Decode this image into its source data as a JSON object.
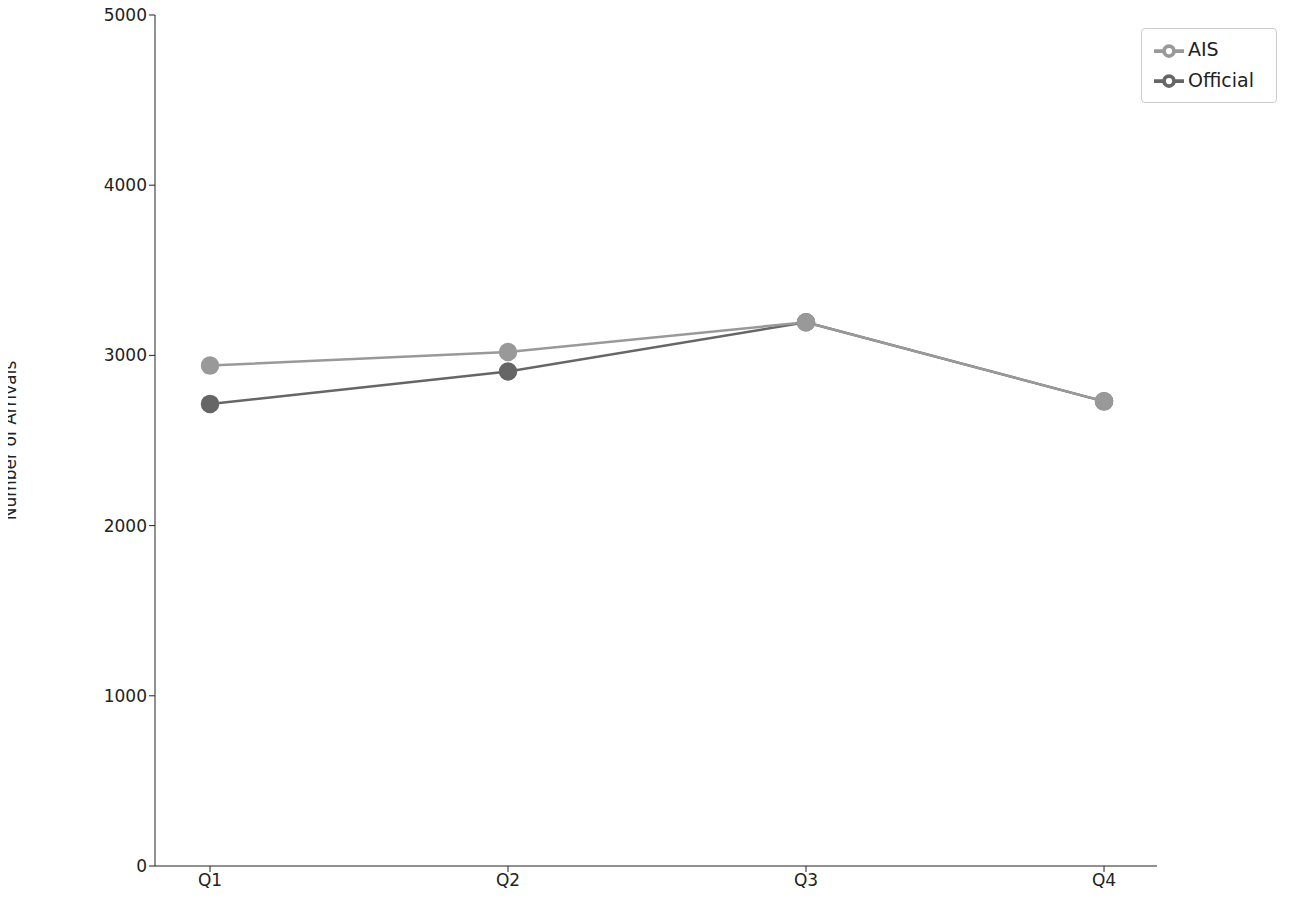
{
  "chart_data": {
    "type": "line",
    "y_label": "Number of Arrivals",
    "categories": [
      "Q1",
      "Q2",
      "Q3",
      "Q4"
    ],
    "series": [
      {
        "name": "Official",
        "color": "#666666",
        "marker": "circle",
        "values": [
          2715,
          2905,
          3195,
          2730
        ]
      },
      {
        "name": "AIS",
        "color": "#999999",
        "marker": "circle",
        "values": [
          2940,
          3020,
          3195,
          2730
        ]
      }
    ],
    "ylim": [
      0,
      5000
    ],
    "yticks": [
      0,
      1000,
      2000,
      3000,
      4000,
      5000
    ],
    "grid": false,
    "legend": "upper right"
  }
}
